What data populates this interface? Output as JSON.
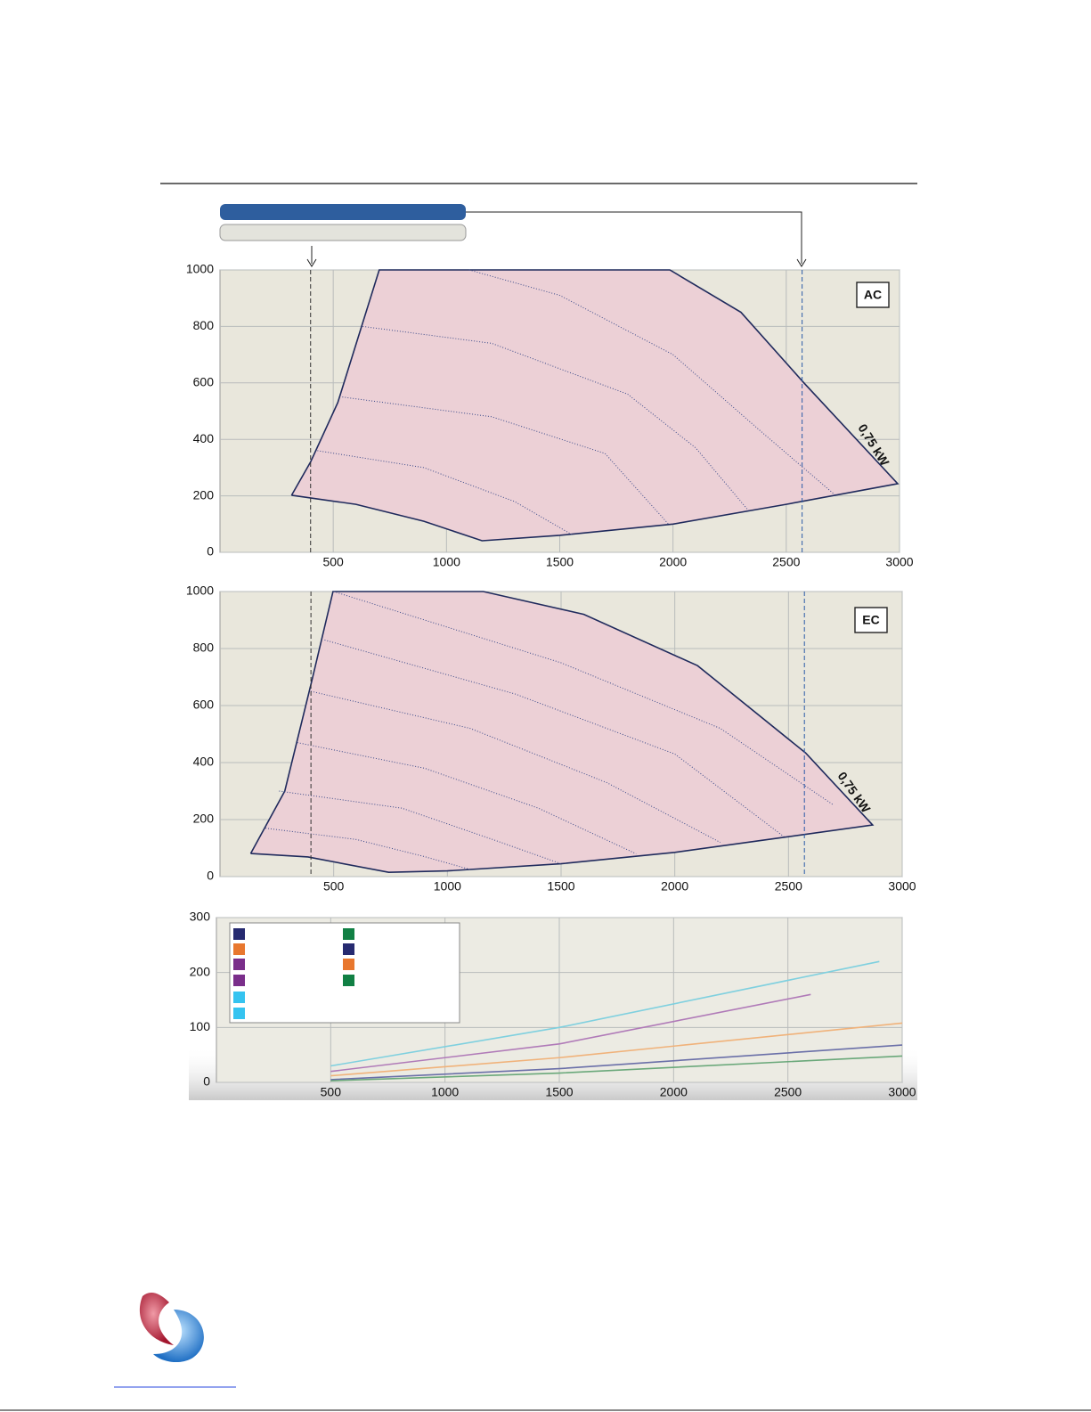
{
  "chart_data": [
    {
      "type": "line",
      "label": "AC",
      "annotation": "0,75 kW",
      "xlim": [
        0,
        3000
      ],
      "ylim": [
        0,
        1000
      ],
      "xticks": [
        500,
        1000,
        1500,
        2000,
        2500,
        3000
      ],
      "yticks": [
        0,
        200,
        400,
        600,
        800,
        1000
      ],
      "grid": true,
      "vlines": [
        {
          "value": 400,
          "color": "#333333"
        },
        {
          "value": 2570,
          "color": "#2a5aa8"
        }
      ],
      "series": [
        {
          "color": "#1f2a5c",
          "fill": "#ecd0d6",
          "style": "solid",
          "x": [
            316,
            400,
            520,
            703,
            1986,
            2300,
            2578,
            2992,
            2500,
            2000,
            1500,
            1157,
            900,
            600,
            316
          ],
          "values": [
            202,
            320,
            530,
            1000,
            1000,
            850,
            600,
            243,
            170,
            100,
            60,
            41,
            110,
            170,
            202
          ]
        },
        {
          "color": "#3a4a8a",
          "style": "dotted",
          "x": [
            1100,
            1500,
            2000,
            2400,
            2720
          ],
          "values": [
            1000,
            910,
            700,
            420,
            200
          ]
        },
        {
          "color": "#3a4a8a",
          "style": "dotted",
          "x": [
            630,
            1200,
            1800,
            2100,
            2333
          ],
          "values": [
            800,
            740,
            560,
            370,
            148
          ]
        },
        {
          "color": "#3a4a8a",
          "style": "dotted",
          "x": [
            540,
            1200,
            1700,
            1980
          ],
          "values": [
            550,
            480,
            350,
            100
          ]
        },
        {
          "color": "#3a4a8a",
          "style": "dotted",
          "x": [
            430,
            900,
            1300,
            1560
          ],
          "values": [
            360,
            300,
            180,
            60
          ]
        }
      ]
    },
    {
      "type": "line",
      "label": "EC",
      "annotation": "0,75 kW",
      "xlim": [
        0,
        3000
      ],
      "ylim": [
        0,
        1000
      ],
      "xticks": [
        500,
        1000,
        1500,
        2000,
        2500,
        3000
      ],
      "yticks": [
        0,
        200,
        400,
        600,
        800,
        1000
      ],
      "grid": true,
      "vlines": [
        {
          "value": 400,
          "color": "#333333"
        },
        {
          "value": 2570,
          "color": "#2a5aa8"
        }
      ],
      "series": [
        {
          "color": "#1f2a5c",
          "fill": "#ecd0d6",
          "style": "solid",
          "x": [
            135,
            285,
            403,
            497,
            1158,
            1600,
            2100,
            2575,
            2870,
            2500,
            2000,
            1500,
            1000,
            742,
            387,
            135
          ],
          "values": [
            81,
            300,
            684,
            1000,
            1000,
            920,
            740,
            434,
            181,
            140,
            85,
            45,
            20,
            15,
            69,
            81
          ]
        },
        {
          "color": "#3a4a8a",
          "style": "dotted",
          "x": [
            500,
            1500,
            2200,
            2700
          ],
          "values": [
            1000,
            750,
            520,
            250
          ]
        },
        {
          "color": "#3a4a8a",
          "style": "dotted",
          "x": [
            460,
            1300,
            2000,
            2480
          ],
          "values": [
            830,
            640,
            430,
            140
          ]
        },
        {
          "color": "#3a4a8a",
          "style": "dotted",
          "x": [
            400,
            1100,
            1700,
            2200
          ],
          "values": [
            650,
            520,
            330,
            120
          ]
        },
        {
          "color": "#3a4a8a",
          "style": "dotted",
          "x": [
            340,
            900,
            1400,
            1830
          ],
          "values": [
            470,
            380,
            240,
            80
          ]
        },
        {
          "color": "#3a4a8a",
          "style": "dotted",
          "x": [
            260,
            800,
            1200,
            1500
          ],
          "values": [
            300,
            240,
            130,
            45
          ]
        },
        {
          "color": "#3a4a8a",
          "style": "dotted",
          "x": [
            200,
            600,
            900,
            1100
          ],
          "values": [
            170,
            130,
            70,
            25
          ]
        }
      ]
    },
    {
      "type": "line",
      "xlim": [
        0,
        3000
      ],
      "ylim": [
        0,
        300
      ],
      "xticks": [
        500,
        1000,
        1500,
        2000,
        2500,
        3000
      ],
      "yticks": [
        0,
        100,
        200,
        300
      ],
      "grid": true,
      "series": [
        {
          "color": "#7fd0df",
          "style": "solid",
          "x": [
            500,
            1500,
            2900
          ],
          "values": [
            30,
            100,
            220
          ]
        },
        {
          "color": "#b07ab8",
          "style": "solid",
          "x": [
            500,
            1500,
            2600
          ],
          "values": [
            20,
            70,
            160
          ]
        },
        {
          "color": "#f0b27a",
          "style": "solid",
          "x": [
            500,
            1500,
            3000
          ],
          "values": [
            12,
            45,
            108
          ]
        },
        {
          "color": "#6a6fa8",
          "style": "solid",
          "x": [
            500,
            1500,
            3000
          ],
          "values": [
            5,
            25,
            68
          ]
        },
        {
          "color": "#6aa87a",
          "style": "solid",
          "x": [
            500,
            1500,
            3000
          ],
          "values": [
            3,
            17,
            48
          ]
        }
      ]
    }
  ]
}
